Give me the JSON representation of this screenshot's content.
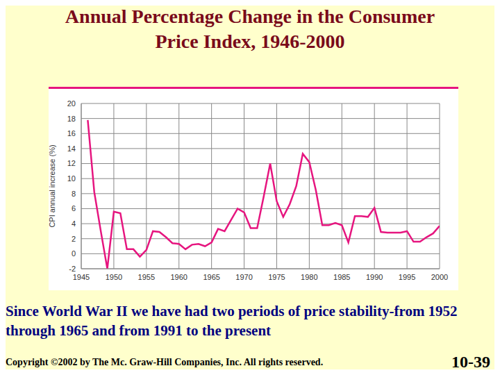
{
  "chart_data": {
    "type": "line",
    "title": "Annual Percentage Change in the Consumer Price Index, 1946-2000",
    "y_label": "CPI annual increase (%)",
    "x": [
      1946,
      1947,
      1948,
      1949,
      1950,
      1951,
      1952,
      1953,
      1954,
      1955,
      1956,
      1957,
      1958,
      1959,
      1960,
      1961,
      1962,
      1963,
      1964,
      1965,
      1966,
      1967,
      1968,
      1969,
      1970,
      1971,
      1972,
      1973,
      1974,
      1975,
      1976,
      1977,
      1978,
      1979,
      1980,
      1981,
      1982,
      1983,
      1984,
      1985,
      1986,
      1987,
      1988,
      1989,
      1990,
      1991,
      1992,
      1993,
      1994,
      1995,
      1996,
      1997,
      1998,
      1999,
      2000
    ],
    "values": [
      17.8,
      8.2,
      3.0,
      -2.0,
      5.6,
      5.4,
      0.6,
      0.6,
      -0.4,
      0.5,
      3.0,
      2.9,
      2.2,
      1.4,
      1.3,
      0.6,
      1.2,
      1.3,
      1.0,
      1.5,
      3.3,
      3.0,
      4.5,
      6.0,
      5.5,
      3.4,
      3.4,
      7.6,
      12.0,
      7.0,
      4.9,
      6.6,
      9.0,
      13.3,
      12.2,
      8.5,
      3.8,
      3.8,
      4.1,
      3.8,
      1.5,
      5.0,
      5.0,
      4.9,
      6.1,
      2.9,
      2.8,
      2.8,
      2.8,
      3.0,
      1.6,
      1.6,
      2.2,
      2.7,
      3.7
    ],
    "color": "#e6157f",
    "xlim": [
      1945,
      2000
    ],
    "xticks": [
      1945,
      1950,
      1955,
      1960,
      1965,
      1970,
      1975,
      1980,
      1985,
      1990,
      1995,
      2000
    ],
    "ylim": [
      -2,
      20
    ],
    "yticks": [
      -2,
      0,
      2,
      4,
      6,
      8,
      10,
      12,
      14,
      16,
      18,
      20
    ],
    "grid": true,
    "annotations": [
      "Since World War II we have had two periods of price stability-from 1952 through 1965 and from 1991 to the present",
      "Copyright ©2002 by The Mc. Graw-Hill Companies, Inc. All rights reserved.",
      "10-39"
    ]
  }
}
